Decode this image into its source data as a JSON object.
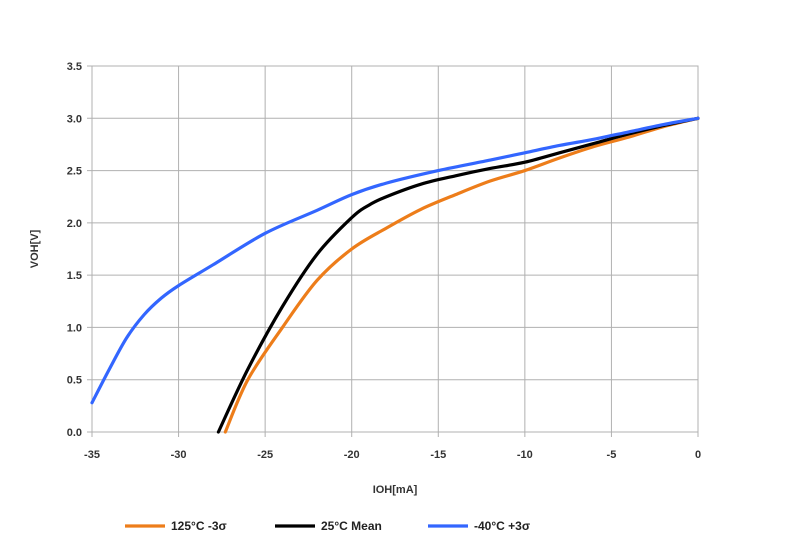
{
  "chart_data": {
    "type": "line",
    "title": "",
    "xlabel": "IOH[mA]",
    "ylabel": "VOH[V]",
    "xlim": [
      -35,
      0
    ],
    "ylim": [
      0,
      3.5
    ],
    "x_ticks": [
      -35,
      -30,
      -25,
      -20,
      -15,
      -10,
      -5,
      0
    ],
    "x_tick_labels": [
      "-35",
      "-30",
      "-25",
      "-20",
      "-15",
      "-10",
      "-5",
      "0"
    ],
    "y_ticks": [
      0,
      0.5,
      1,
      1.5,
      2,
      2.5,
      3,
      3.5
    ],
    "y_tick_labels": [
      "0.0",
      "0.5",
      "1.0",
      "1.5",
      "2.0",
      "2.5",
      "3.0",
      "3.5"
    ],
    "grid": true,
    "legend_position": "bottom",
    "series": [
      {
        "name": "125°C -3σ",
        "color": "#ED7D1A",
        "points": [
          [
            -27.3,
            0
          ],
          [
            -26,
            0.5
          ],
          [
            -24,
            1.0
          ],
          [
            -22,
            1.45
          ],
          [
            -20,
            1.75
          ],
          [
            -18,
            1.95
          ],
          [
            -16,
            2.13
          ],
          [
            -14,
            2.27
          ],
          [
            -12,
            2.4
          ],
          [
            -10,
            2.5
          ],
          [
            -8,
            2.62
          ],
          [
            -6,
            2.73
          ],
          [
            -4,
            2.82
          ],
          [
            -2,
            2.92
          ],
          [
            0,
            3.0
          ]
        ]
      },
      {
        "name": "25°C Mean",
        "color": "#000000",
        "points": [
          [
            -27.7,
            0
          ],
          [
            -26,
            0.6
          ],
          [
            -24,
            1.2
          ],
          [
            -22,
            1.7
          ],
          [
            -20,
            2.05
          ],
          [
            -19,
            2.17
          ],
          [
            -18,
            2.25
          ],
          [
            -16,
            2.37
          ],
          [
            -14,
            2.45
          ],
          [
            -12,
            2.52
          ],
          [
            -10,
            2.58
          ],
          [
            -8,
            2.67
          ],
          [
            -6,
            2.76
          ],
          [
            -4,
            2.85
          ],
          [
            -2,
            2.93
          ],
          [
            0,
            3.0
          ]
        ]
      },
      {
        "name": "-40°C +3σ",
        "color": "#3366FF",
        "points": [
          [
            -35,
            0.28
          ],
          [
            -34,
            0.6
          ],
          [
            -33,
            0.9
          ],
          [
            -32,
            1.12
          ],
          [
            -31,
            1.28
          ],
          [
            -30,
            1.4
          ],
          [
            -28,
            1.6
          ],
          [
            -25,
            1.9
          ],
          [
            -22,
            2.12
          ],
          [
            -20,
            2.27
          ],
          [
            -18,
            2.38
          ],
          [
            -15,
            2.5
          ],
          [
            -12,
            2.6
          ],
          [
            -10,
            2.67
          ],
          [
            -8,
            2.74
          ],
          [
            -6,
            2.8
          ],
          [
            -4,
            2.87
          ],
          [
            -2,
            2.94
          ],
          [
            0,
            3.0
          ]
        ]
      }
    ]
  }
}
